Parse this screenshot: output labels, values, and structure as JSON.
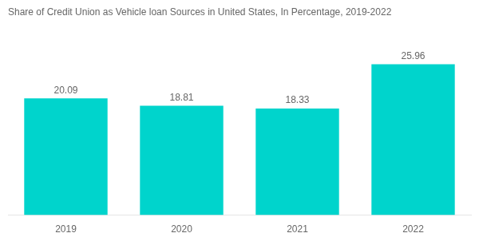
{
  "chart_data": {
    "type": "bar",
    "title": "Share of Credit Union as Vehicle loan Sources in United States, In Percentage, 2019-2022",
    "categories": [
      "2019",
      "2020",
      "2021",
      "2022"
    ],
    "values": [
      20.09,
      18.81,
      18.33,
      25.96
    ],
    "color": "#00D4CC",
    "ylim": [
      0,
      32
    ],
    "data_labels": true,
    "tick_labels": "x",
    "grid": false
  }
}
